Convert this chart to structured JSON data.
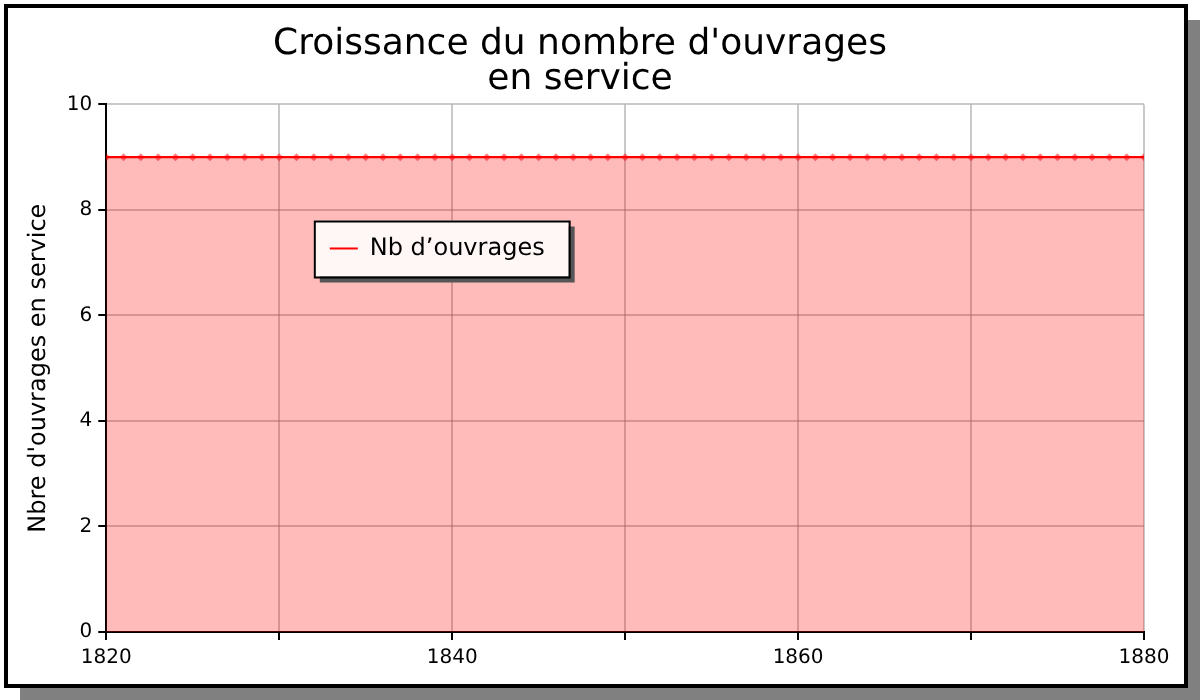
{
  "chart_data": {
    "type": "area",
    "title": "Croissance du nombre d'ouvrages\nen service",
    "ylabel": "Nbre d'ouvrages en service",
    "x": [
      1820,
      1821,
      1822,
      1823,
      1824,
      1825,
      1826,
      1827,
      1828,
      1829,
      1830,
      1831,
      1832,
      1833,
      1834,
      1835,
      1836,
      1837,
      1838,
      1839,
      1840,
      1841,
      1842,
      1843,
      1844,
      1845,
      1846,
      1847,
      1848,
      1849,
      1850,
      1851,
      1852,
      1853,
      1854,
      1855,
      1856,
      1857,
      1858,
      1859,
      1860,
      1861,
      1862,
      1863,
      1864,
      1865,
      1866,
      1867,
      1868,
      1869,
      1870,
      1871,
      1872,
      1873,
      1874,
      1875,
      1876,
      1877,
      1878,
      1879,
      1880
    ],
    "series": [
      {
        "name": "Nb d’ouvrages",
        "color": "#ff0000",
        "values": [
          9,
          9,
          9,
          9,
          9,
          9,
          9,
          9,
          9,
          9,
          9,
          9,
          9,
          9,
          9,
          9,
          9,
          9,
          9,
          9,
          9,
          9,
          9,
          9,
          9,
          9,
          9,
          9,
          9,
          9,
          9,
          9,
          9,
          9,
          9,
          9,
          9,
          9,
          9,
          9,
          9,
          9,
          9,
          9,
          9,
          9,
          9,
          9,
          9,
          9,
          9,
          9,
          9,
          9,
          9,
          9,
          9,
          9,
          9,
          9,
          9
        ]
      }
    ],
    "xlim": [
      1820,
      1880
    ],
    "xticks": [
      1820,
      {
        "value": 1830,
        "label": null
      },
      1840,
      {
        "value": 1850,
        "label": null
      },
      1860,
      {
        "value": 1870,
        "label": null
      },
      1880
    ],
    "ylim": [
      0,
      10
    ],
    "yticks": [
      0,
      2,
      4,
      6,
      8,
      10
    ],
    "grid": true,
    "legend": "top left",
    "marker": "diamond",
    "line_style": "solid"
  }
}
